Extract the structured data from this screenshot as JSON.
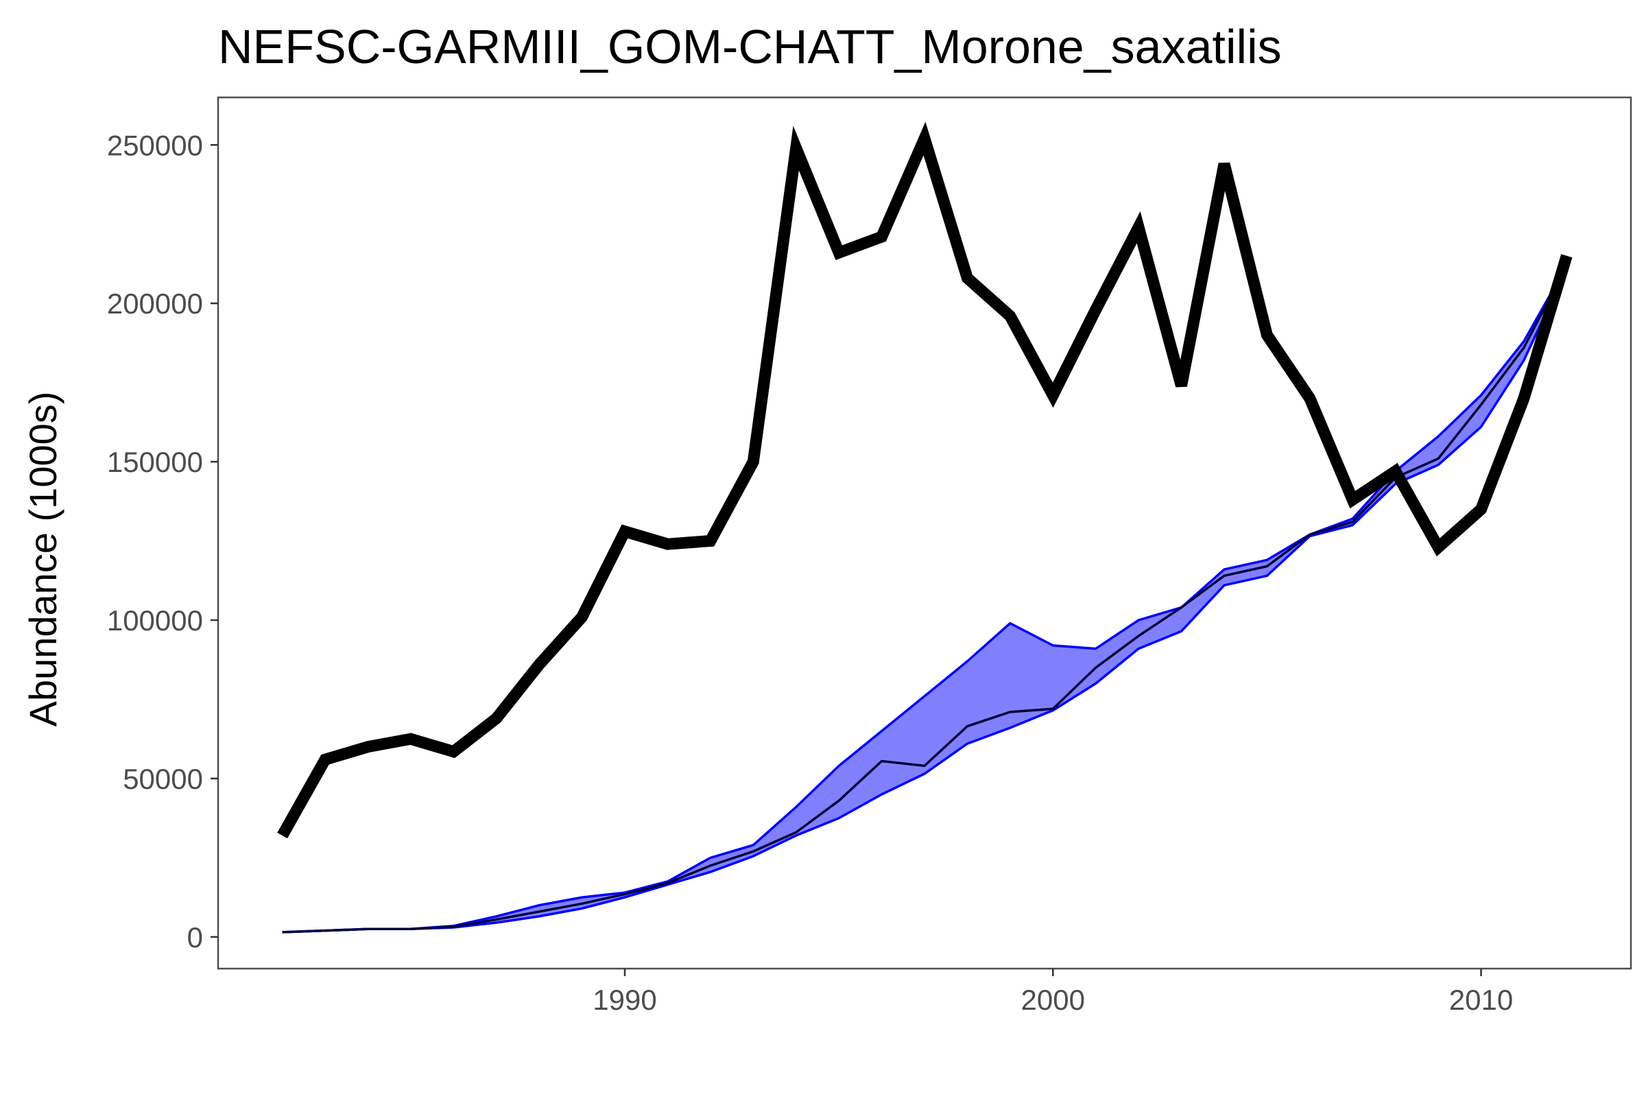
{
  "chart_data": {
    "type": "line",
    "title": "NEFSC-GARMIII_GOM-CHATT_Morone_saxatilis",
    "xlabel": "",
    "ylabel": "Abundance (1000s)",
    "xlim": [
      1980.5,
      2013.5
    ],
    "ylim": [
      -10000,
      265000
    ],
    "x_ticks": [
      1990,
      2000,
      2010
    ],
    "x_tick_labels": [
      "1990",
      "2000",
      "2010"
    ],
    "y_ticks": [
      0,
      50000,
      100000,
      150000,
      200000,
      250000
    ],
    "y_tick_labels": [
      "0",
      "50000",
      "100000",
      "150000",
      "200000",
      "250000"
    ],
    "grid": false,
    "legend": "none",
    "colors": {
      "observed_line": "#000000",
      "band_fill": "#8080ff",
      "band_edge": "#0000ff",
      "median_line": "#00003a",
      "panel_border": "#4d4d4d"
    },
    "series": [
      {
        "role": "observed",
        "x": [
          1982,
          1983,
          1984,
          1985,
          1986,
          1987,
          1988,
          1989,
          1990,
          1991,
          1992,
          1993,
          1994,
          1995,
          1996,
          1997,
          1998,
          1999,
          2000,
          2001,
          2002,
          2003,
          2004,
          2005,
          2006,
          2007,
          2008,
          2009,
          2010,
          2011,
          2012
        ],
        "values": [
          32000,
          56000,
          60000,
          62500,
          58500,
          69000,
          86000,
          101000,
          128000,
          124000,
          125000,
          150000,
          249000,
          216000,
          221000,
          252000,
          208000,
          196000,
          171000,
          198000,
          224000,
          174000,
          244000,
          190000,
          170000,
          138000,
          147000,
          123000,
          135000,
          170000,
          215000
        ]
      },
      {
        "role": "band_upper",
        "x": [
          1982,
          1983,
          1984,
          1985,
          1986,
          1987,
          1988,
          1989,
          1990,
          1991,
          1992,
          1993,
          1994,
          1995,
          1996,
          1997,
          1998,
          1999,
          2000,
          2001,
          2002,
          2003,
          2004,
          2005,
          2006,
          2007,
          2008,
          2009,
          2010,
          2011,
          2012
        ],
        "values": [
          1500,
          2000,
          2500,
          2500,
          3500,
          6500,
          10000,
          12500,
          14000,
          17500,
          25000,
          29000,
          41000,
          54000,
          65000,
          76000,
          87000,
          99000,
          92000,
          91000,
          100000,
          104000,
          116000,
          119000,
          127000,
          132000,
          147000,
          158000,
          171000,
          188000,
          212000
        ]
      },
      {
        "role": "band_lower",
        "x": [
          1982,
          1983,
          1984,
          1985,
          1986,
          1987,
          1988,
          1989,
          1990,
          1991,
          1992,
          1993,
          1994,
          1995,
          1996,
          1997,
          1998,
          1999,
          2000,
          2001,
          2002,
          2003,
          2004,
          2005,
          2006,
          2007,
          2008,
          2009,
          2010,
          2011,
          2012
        ],
        "values": [
          1500,
          2000,
          2500,
          2500,
          3000,
          4500,
          6500,
          9000,
          12500,
          16500,
          20500,
          25500,
          32000,
          37500,
          45000,
          51500,
          61000,
          66000,
          71500,
          80000,
          91000,
          96500,
          111000,
          114000,
          126500,
          130000,
          143000,
          149000,
          161000,
          182000,
          211000
        ]
      },
      {
        "role": "median",
        "x": [
          1982,
          1983,
          1984,
          1985,
          1986,
          1987,
          1988,
          1989,
          1990,
          1991,
          1992,
          1993,
          1994,
          1995,
          1996,
          1997,
          1998,
          1999,
          2000,
          2001,
          2002,
          2003,
          2004,
          2005,
          2006,
          2007,
          2008,
          2009,
          2010,
          2011,
          2012
        ],
        "values": [
          1500,
          2000,
          2500,
          2500,
          3200,
          5500,
          8000,
          10500,
          13500,
          17000,
          22500,
          27000,
          33000,
          43000,
          55500,
          54000,
          66500,
          71000,
          72000,
          85000,
          95000,
          104000,
          114000,
          117000,
          127000,
          131000,
          145000,
          151000,
          168000,
          186000,
          212000
        ]
      }
    ]
  }
}
